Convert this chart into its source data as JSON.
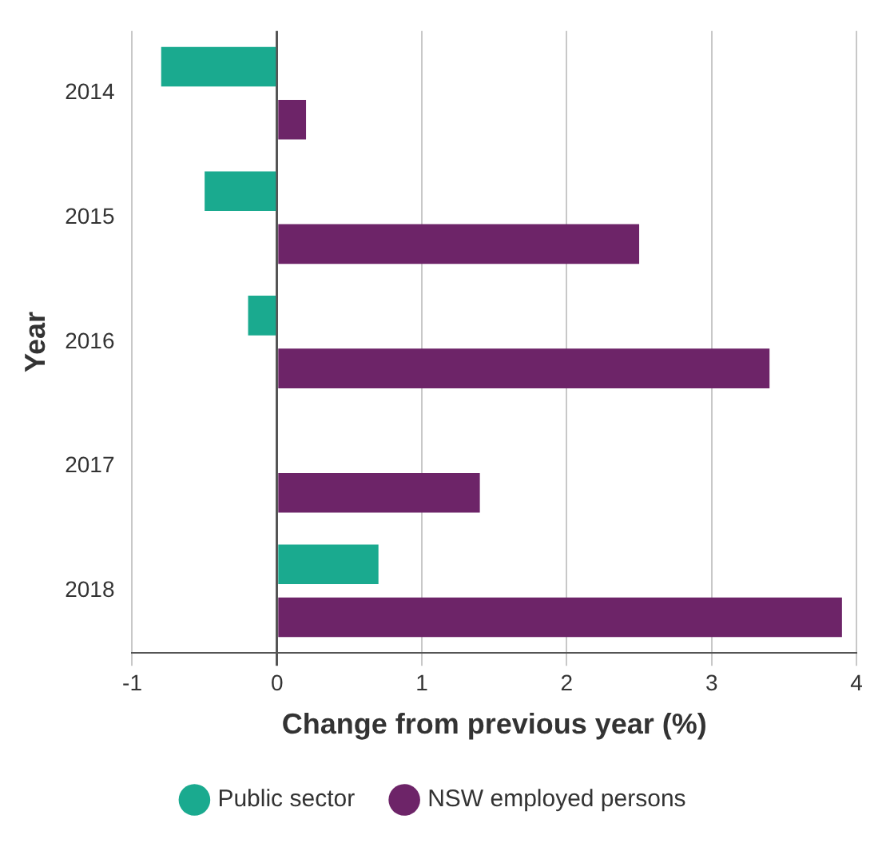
{
  "chart_data": {
    "type": "bar",
    "orientation": "horizontal",
    "xlabel": "Change from previous year (%)",
    "ylabel": "Year",
    "categories": [
      "2014",
      "2015",
      "2016",
      "2017",
      "2018"
    ],
    "series": [
      {
        "name": "Public sector",
        "color": "#1aaa8f",
        "values": [
          -0.8,
          -0.5,
          -0.2,
          0,
          0.7
        ]
      },
      {
        "name": "NSW employed persons",
        "color": "#6d2468",
        "values": [
          0.2,
          2.5,
          3.4,
          1.4,
          3.9
        ]
      }
    ],
    "xlim": [
      -1,
      4
    ],
    "xticks": [
      -1,
      0,
      1,
      2,
      3,
      4
    ],
    "grid": "x",
    "legend": "bottom"
  }
}
